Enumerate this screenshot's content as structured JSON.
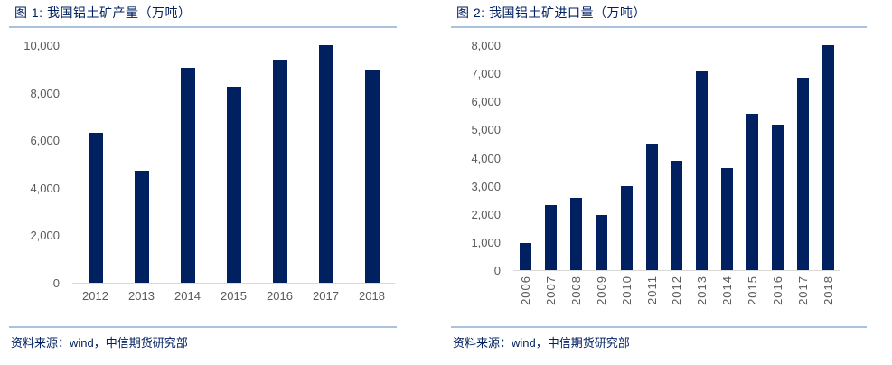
{
  "panels": [
    {
      "title": "图 1: 我国铝土矿产量（万吨）",
      "source": "资料来源：wind，中信期货研究部"
    },
    {
      "title": "图 2: 我国铝土矿进口量（万吨）",
      "source": "资料来源：wind，中信期货研究部"
    }
  ],
  "colors": {
    "bar": "#002060",
    "title_text": "#002060",
    "rule": "#a9c2dd",
    "axis_line": "#d9d9d9",
    "tick_label": "#595959"
  },
  "chart_data": [
    {
      "type": "bar",
      "title": "图 1: 我国铝土矿产量（万吨）",
      "categories": [
        "2012",
        "2013",
        "2014",
        "2015",
        "2016",
        "2017",
        "2018"
      ],
      "values": [
        6300,
        4700,
        9050,
        8250,
        9400,
        10000,
        8950
      ],
      "xlabel": "",
      "ylabel": "",
      "ylim": [
        0,
        10000
      ],
      "ytick_step": 2000,
      "ytick_labels": [
        "0",
        "2,000",
        "4,000",
        "6,000",
        "8,000",
        "10,000"
      ],
      "grid": false,
      "legend": null,
      "x_tick_rotation": 0,
      "bar_color": "#002060",
      "source_note": "资料来源：wind，中信期货研究部"
    },
    {
      "type": "bar",
      "title": "图 2: 我国铝土矿进口量（万吨）",
      "categories": [
        "2006",
        "2007",
        "2008",
        "2009",
        "2010",
        "2011",
        "2012",
        "2013",
        "2014",
        "2015",
        "2016",
        "2017",
        "2018"
      ],
      "values": [
        950,
        2330,
        2580,
        1970,
        3000,
        4500,
        3900,
        7070,
        3630,
        5560,
        5180,
        6830,
        8000
      ],
      "xlabel": "",
      "ylabel": "",
      "ylim": [
        0,
        8000
      ],
      "ytick_step": 1000,
      "ytick_labels": [
        "0",
        "1,000",
        "2,000",
        "3,000",
        "4,000",
        "5,000",
        "6,000",
        "7,000",
        "8,000"
      ],
      "grid": false,
      "legend": null,
      "x_tick_rotation": -90,
      "bar_color": "#002060",
      "source_note": "资料来源：wind，中信期货研究部"
    }
  ]
}
